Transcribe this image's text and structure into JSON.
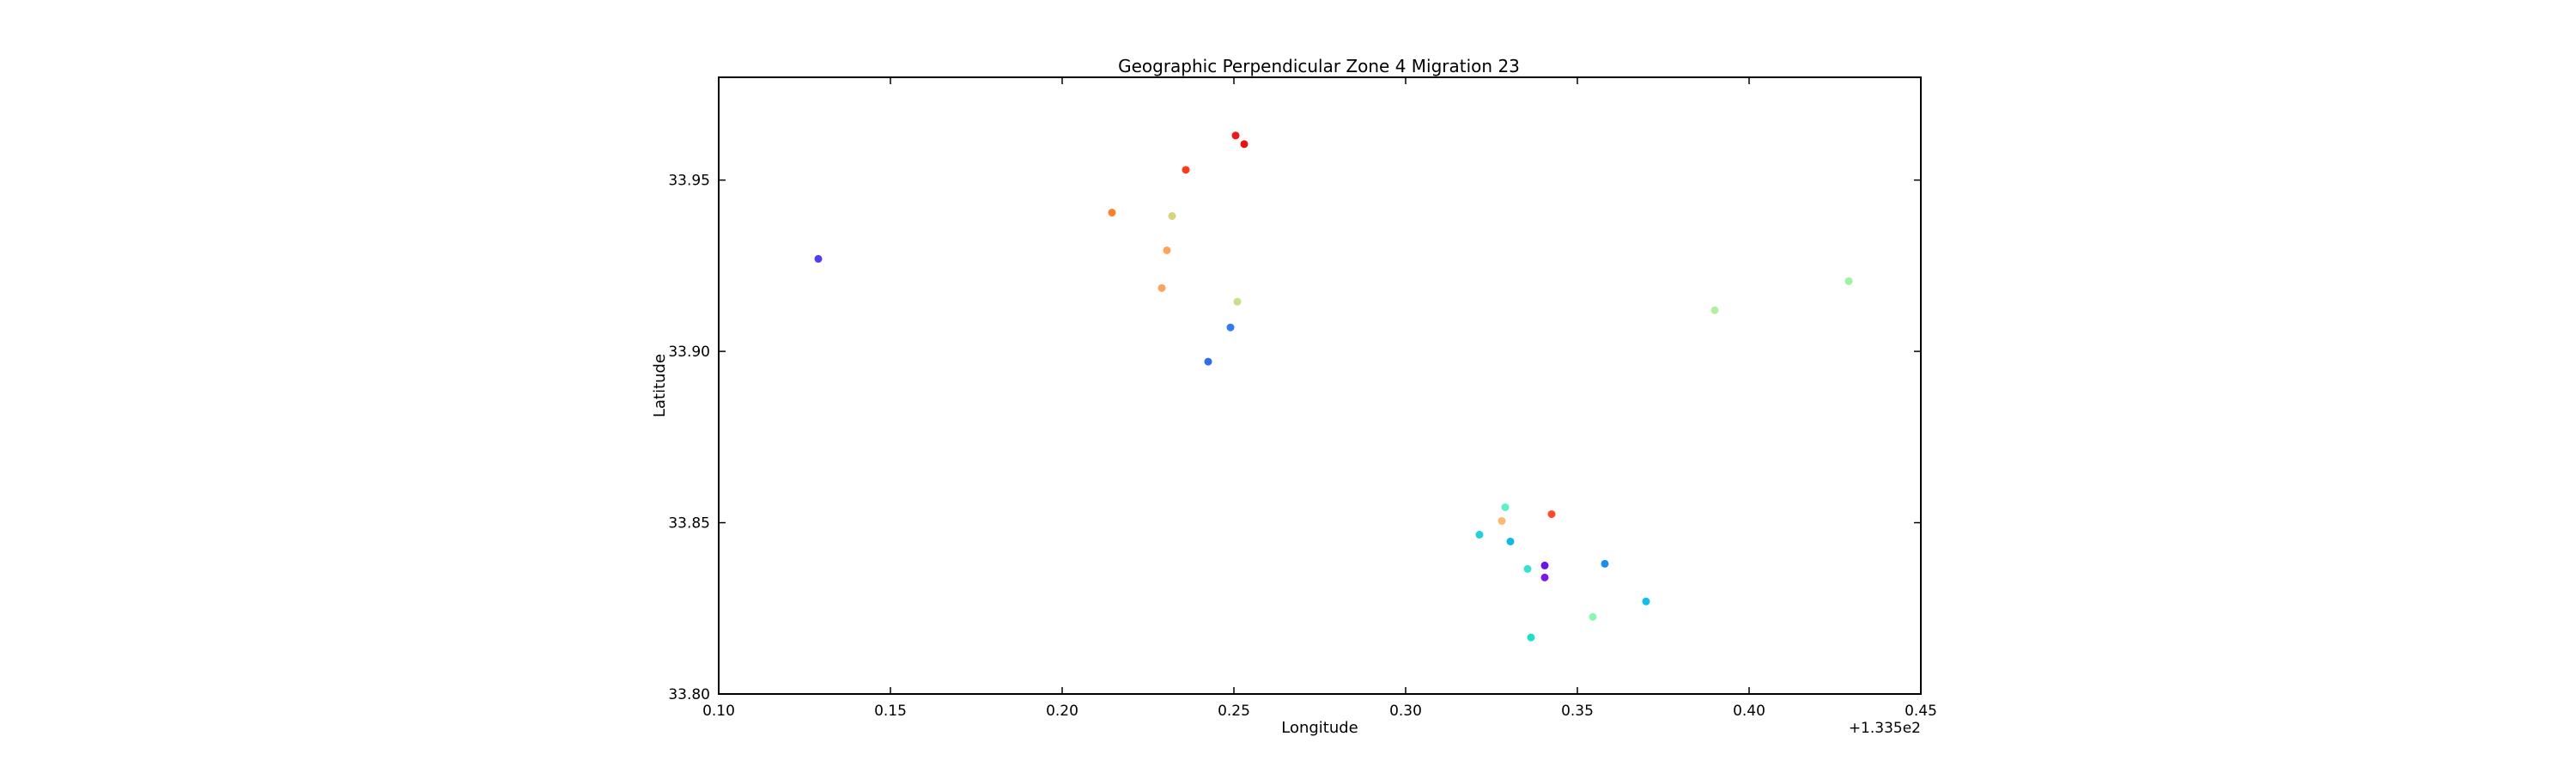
{
  "chart_data": {
    "type": "scatter",
    "title": "Geographic Perpendicular Zone 4 Migration 23",
    "xlabel": "Longitude",
    "ylabel": "Latitude",
    "x_offset_label": "+1.335e2",
    "xlim": [
      0.1,
      0.45
    ],
    "ylim": [
      33.8,
      33.98
    ],
    "x_ticks": [
      "0.10",
      "0.15",
      "0.20",
      "0.25",
      "0.30",
      "0.35",
      "0.40",
      "0.45"
    ],
    "y_ticks": [
      "33.80",
      "33.85",
      "33.90",
      "33.95"
    ],
    "grid": false,
    "points": [
      {
        "x": 0.129,
        "y": 33.927,
        "color": "#4f3ff2"
      },
      {
        "x": 0.2145,
        "y": 33.9405,
        "color": "#ff7f2a"
      },
      {
        "x": 0.236,
        "y": 33.953,
        "color": "#ff3b1a"
      },
      {
        "x": 0.2505,
        "y": 33.963,
        "color": "#f01818"
      },
      {
        "x": 0.253,
        "y": 33.9605,
        "color": "#e8120f"
      },
      {
        "x": 0.232,
        "y": 33.9395,
        "color": "#d8d27a"
      },
      {
        "x": 0.2305,
        "y": 33.9295,
        "color": "#ffa35a"
      },
      {
        "x": 0.229,
        "y": 33.9185,
        "color": "#ffa35a"
      },
      {
        "x": 0.251,
        "y": 33.9145,
        "color": "#c8e08c"
      },
      {
        "x": 0.249,
        "y": 33.907,
        "color": "#2f7cf5"
      },
      {
        "x": 0.2425,
        "y": 33.897,
        "color": "#2f6cf0"
      },
      {
        "x": 0.39,
        "y": 33.912,
        "color": "#b0f0a0"
      },
      {
        "x": 0.429,
        "y": 33.9205,
        "color": "#9cf59c"
      },
      {
        "x": 0.329,
        "y": 33.8545,
        "color": "#5ef0c8"
      },
      {
        "x": 0.328,
        "y": 33.8505,
        "color": "#ffb870"
      },
      {
        "x": 0.3425,
        "y": 33.8525,
        "color": "#ff4a2a"
      },
      {
        "x": 0.3215,
        "y": 33.8465,
        "color": "#22d2d8"
      },
      {
        "x": 0.3305,
        "y": 33.8445,
        "color": "#10b8e8"
      },
      {
        "x": 0.3355,
        "y": 33.8365,
        "color": "#3ae0d2"
      },
      {
        "x": 0.3405,
        "y": 33.8375,
        "color": "#6a14e8"
      },
      {
        "x": 0.3405,
        "y": 33.834,
        "color": "#7a1ae8"
      },
      {
        "x": 0.358,
        "y": 33.838,
        "color": "#1a8ef0"
      },
      {
        "x": 0.37,
        "y": 33.827,
        "color": "#10c0ea"
      },
      {
        "x": 0.3545,
        "y": 33.8225,
        "color": "#8cf5b0"
      },
      {
        "x": 0.3365,
        "y": 33.8165,
        "color": "#1ee0c8"
      }
    ]
  }
}
